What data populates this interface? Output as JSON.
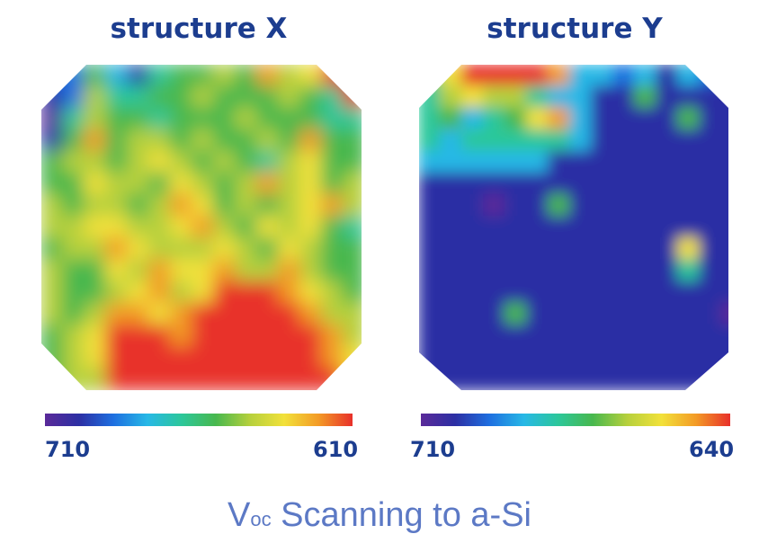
{
  "chart_data": {
    "type": "heatmap",
    "caption": {
      "main": "V",
      "subscript": "oc",
      "rest": " Scanning to a-Si"
    },
    "colormap": [
      "#5a2a99",
      "#2c2fa4",
      "#1e6fe0",
      "#27b8e6",
      "#2cc79a",
      "#48b84e",
      "#b6d03c",
      "#f2e13a",
      "#f39b26",
      "#e8302a"
    ],
    "panels": [
      {
        "name": "structure X",
        "colorbar_min_label": "710",
        "colorbar_max_label": "610",
        "grid": [
          [
            2,
            2,
            5,
            3,
            1,
            4,
            5,
            5,
            6,
            5,
            8,
            6,
            7,
            9,
            9
          ],
          [
            1,
            2,
            6,
            4,
            4,
            5,
            5,
            6,
            5,
            5,
            5,
            6,
            5,
            4,
            9
          ],
          [
            0,
            4,
            6,
            5,
            5,
            4,
            5,
            5,
            5,
            6,
            5,
            5,
            5,
            4,
            4
          ],
          [
            1,
            5,
            8,
            5,
            6,
            6,
            5,
            6,
            5,
            5,
            6,
            5,
            8,
            5,
            5
          ],
          [
            5,
            6,
            6,
            5,
            6,
            7,
            6,
            5,
            6,
            5,
            4,
            6,
            7,
            5,
            5
          ],
          [
            5,
            5,
            7,
            6,
            6,
            5,
            7,
            6,
            5,
            6,
            8,
            6,
            7,
            5,
            6
          ],
          [
            6,
            5,
            6,
            6,
            5,
            6,
            8,
            7,
            5,
            6,
            5,
            6,
            7,
            8,
            6
          ],
          [
            6,
            6,
            7,
            7,
            6,
            6,
            7,
            8,
            6,
            5,
            7,
            6,
            7,
            5,
            4
          ],
          [
            5,
            6,
            6,
            8,
            7,
            6,
            6,
            6,
            7,
            6,
            5,
            7,
            6,
            5,
            5
          ],
          [
            6,
            5,
            5,
            7,
            6,
            8,
            7,
            7,
            8,
            6,
            6,
            8,
            6,
            5,
            5
          ],
          [
            6,
            5,
            5,
            6,
            7,
            8,
            6,
            7,
            9,
            9,
            9,
            8,
            7,
            6,
            5
          ],
          [
            6,
            5,
            6,
            8,
            8,
            7,
            8,
            9,
            9,
            9,
            9,
            9,
            8,
            6,
            6
          ],
          [
            5,
            6,
            7,
            9,
            9,
            9,
            8,
            9,
            9,
            9,
            9,
            9,
            9,
            8,
            6
          ],
          [
            5,
            6,
            7,
            9,
            9,
            9,
            9,
            9,
            9,
            9,
            9,
            9,
            9,
            8,
            7
          ],
          [
            5,
            6,
            6,
            9,
            9,
            9,
            9,
            9,
            9,
            9,
            9,
            9,
            9,
            9,
            7
          ]
        ]
      },
      {
        "name": "structure Y",
        "colorbar_min_label": "710",
        "colorbar_max_label": "640",
        "grid": [
          [
            4,
            7,
            9,
            9,
            9,
            9,
            8,
            3,
            3,
            2,
            3,
            1,
            3,
            2,
            1
          ],
          [
            4,
            6,
            7,
            6,
            6,
            4,
            3,
            3,
            1,
            1,
            5,
            1,
            1,
            1,
            1
          ],
          [
            4,
            5,
            3,
            4,
            5,
            7,
            8,
            3,
            1,
            1,
            1,
            1,
            5,
            1,
            1
          ],
          [
            4,
            3,
            4,
            4,
            4,
            4,
            4,
            3,
            1,
            1,
            1,
            1,
            1,
            1,
            1
          ],
          [
            3,
            3,
            3,
            3,
            3,
            3,
            1,
            1,
            1,
            1,
            1,
            1,
            1,
            1,
            1
          ],
          [
            1,
            1,
            1,
            1,
            1,
            1,
            1,
            1,
            1,
            1,
            1,
            1,
            1,
            1,
            1
          ],
          [
            1,
            1,
            1,
            0,
            1,
            1,
            5,
            1,
            1,
            1,
            1,
            1,
            1,
            1,
            1
          ],
          [
            1,
            1,
            1,
            1,
            1,
            1,
            1,
            1,
            1,
            1,
            1,
            1,
            1,
            1,
            1
          ],
          [
            1,
            1,
            1,
            1,
            1,
            1,
            1,
            1,
            1,
            1,
            1,
            1,
            7,
            1,
            1
          ],
          [
            1,
            1,
            1,
            1,
            1,
            1,
            1,
            1,
            1,
            1,
            1,
            1,
            4,
            1,
            1
          ],
          [
            1,
            1,
            1,
            1,
            1,
            1,
            1,
            1,
            1,
            1,
            1,
            1,
            1,
            1,
            1
          ],
          [
            1,
            1,
            1,
            1,
            5,
            1,
            1,
            1,
            1,
            1,
            1,
            1,
            1,
            1,
            0
          ],
          [
            1,
            1,
            1,
            1,
            1,
            1,
            1,
            1,
            1,
            1,
            1,
            1,
            1,
            1,
            1
          ],
          [
            1,
            1,
            1,
            1,
            1,
            1,
            1,
            1,
            1,
            1,
            1,
            1,
            1,
            1,
            1
          ],
          [
            1,
            1,
            1,
            1,
            1,
            1,
            1,
            1,
            1,
            1,
            1,
            1,
            1,
            1,
            1
          ]
        ]
      }
    ]
  }
}
